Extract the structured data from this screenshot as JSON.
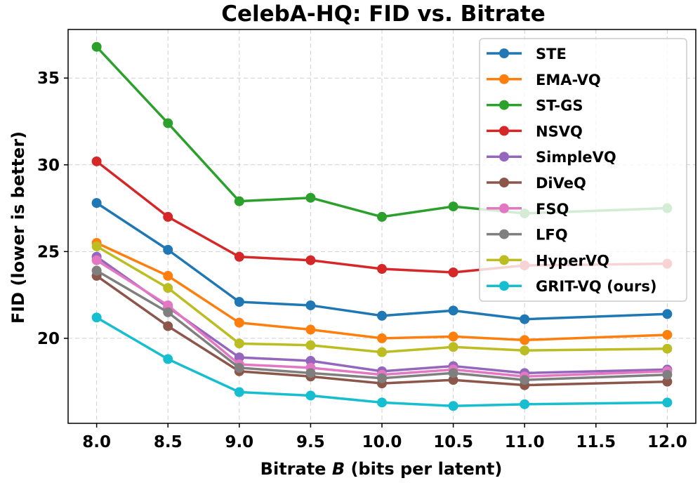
{
  "chart_data": {
    "type": "line",
    "title": "CelebA-HQ: FID vs. Bitrate",
    "xlabel_prefix": "Bitrate ",
    "xlabel_var": "B",
    "xlabel_suffix": " (bits per latent)",
    "ylabel": "FID (lower is better)",
    "x": [
      8.0,
      8.5,
      9.0,
      9.5,
      10.0,
      10.5,
      11.0,
      12.0
    ],
    "xticks": [
      8.0,
      8.5,
      9.0,
      9.5,
      10.0,
      10.5,
      11.0,
      11.5,
      12.0
    ],
    "xtick_labels": [
      "8.0",
      "8.5",
      "9.0",
      "9.5",
      "10.0",
      "10.5",
      "11.0",
      "11.5",
      "12.0"
    ],
    "yticks": [
      20,
      25,
      30,
      35
    ],
    "ytick_labels": [
      "20",
      "25",
      "30",
      "35"
    ],
    "xlim": [
      7.8,
      12.2
    ],
    "ylim": [
      15.1,
      37.8
    ],
    "grid": true,
    "legend_position": "top-right",
    "series": [
      {
        "name": "STE",
        "color": "#1f77b4",
        "values": [
          27.8,
          25.1,
          22.1,
          21.9,
          21.3,
          21.6,
          21.1,
          21.4
        ]
      },
      {
        "name": "EMA-VQ",
        "color": "#ff7f0e",
        "values": [
          25.5,
          23.6,
          20.9,
          20.5,
          20.0,
          20.1,
          19.9,
          20.2
        ]
      },
      {
        "name": "ST-GS",
        "color": "#2ca02c",
        "values": [
          36.8,
          32.4,
          27.9,
          28.1,
          27.0,
          27.6,
          27.2,
          27.5
        ]
      },
      {
        "name": "NSVQ",
        "color": "#d62728",
        "values": [
          30.2,
          27.0,
          24.7,
          24.5,
          24.0,
          23.8,
          24.2,
          24.3
        ]
      },
      {
        "name": "SimpleVQ",
        "color": "#9467bd",
        "values": [
          24.7,
          21.8,
          18.9,
          18.7,
          18.1,
          18.4,
          18.0,
          18.2
        ]
      },
      {
        "name": "DiVeQ",
        "color": "#8c564b",
        "values": [
          23.6,
          20.7,
          18.1,
          17.8,
          17.4,
          17.6,
          17.3,
          17.5
        ]
      },
      {
        "name": "FSQ",
        "color": "#e377c2",
        "values": [
          24.5,
          21.9,
          18.5,
          18.3,
          17.9,
          18.2,
          17.8,
          18.1
        ]
      },
      {
        "name": "LFQ",
        "color": "#7f7f7f",
        "values": [
          23.9,
          21.5,
          18.3,
          18.0,
          17.7,
          18.0,
          17.6,
          17.9
        ]
      },
      {
        "name": "HyperVQ",
        "color": "#bcbd22",
        "values": [
          25.3,
          22.9,
          19.7,
          19.6,
          19.2,
          19.5,
          19.3,
          19.4
        ]
      },
      {
        "name": "GRIT-VQ (ours)",
        "color": "#17becf",
        "values": [
          21.2,
          18.8,
          16.9,
          16.7,
          16.3,
          16.1,
          16.2,
          16.3
        ]
      }
    ]
  }
}
